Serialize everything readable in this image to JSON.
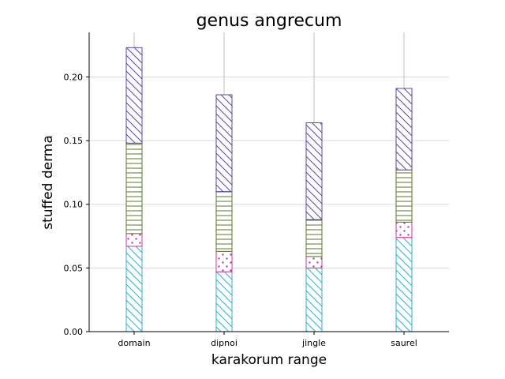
{
  "chart_data": {
    "type": "bar",
    "stacked": true,
    "title": "genus angrecum",
    "xlabel": "karakorum range",
    "ylabel": "stuffed derma",
    "categories": [
      "domain",
      "dipnoi",
      "jingle",
      "saurel"
    ],
    "ylim": [
      0,
      0.235
    ],
    "yticks": [
      0.0,
      0.05,
      0.1,
      0.15,
      0.2
    ],
    "grid": "y",
    "series": [
      {
        "values": [
          0.067,
          0.047,
          0.05,
          0.074
        ],
        "color": "#3aaccc",
        "hatch": "backslash"
      },
      {
        "values": [
          0.01,
          0.016,
          0.009,
          0.012
        ],
        "color": "#cc33aa",
        "hatch": "dots"
      },
      {
        "values": [
          0.071,
          0.047,
          0.029,
          0.041
        ],
        "color": "#5a7a2a",
        "hatch": "horizontal"
      },
      {
        "values": [
          0.075,
          0.076,
          0.076,
          0.064
        ],
        "color": "#5a4aa0",
        "hatch": "backslash"
      }
    ]
  }
}
